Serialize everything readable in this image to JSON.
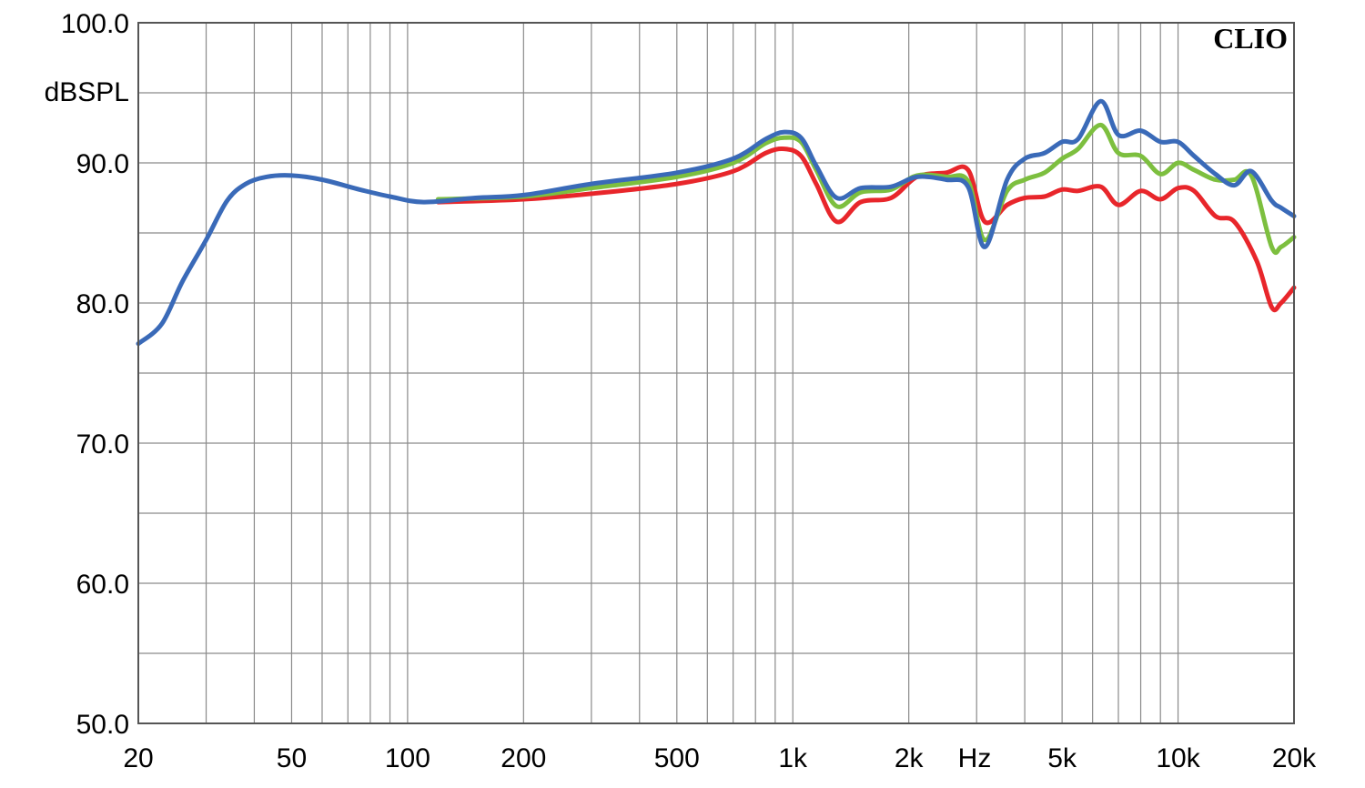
{
  "chart_data": {
    "type": "line",
    "title": "",
    "logo_text": "CLIO",
    "ylabel": "dBSPL",
    "xlabel": "Hz",
    "x_scale": "log",
    "xlim": [
      20,
      20000
    ],
    "ylim": [
      50,
      100
    ],
    "grid": true,
    "y_ticks": [
      "100.0",
      "90.0",
      "80.0",
      "70.0",
      "60.0",
      "50.0"
    ],
    "x_ticks": [
      {
        "label": "20",
        "value": 20
      },
      {
        "label": "50",
        "value": 50
      },
      {
        "label": "100",
        "value": 100
      },
      {
        "label": "200",
        "value": 200
      },
      {
        "label": "500",
        "value": 500
      },
      {
        "label": "1k",
        "value": 1000
      },
      {
        "label": "2k",
        "value": 2000
      },
      {
        "label": "5k",
        "value": 5000
      },
      {
        "label": "10k",
        "value": 10000
      },
      {
        "label": "20k",
        "value": 20000
      }
    ],
    "series": [
      {
        "color": "#e8262b",
        "points": [
          [
            120,
            87.2
          ],
          [
            200,
            87.4
          ],
          [
            300,
            87.8
          ],
          [
            500,
            88.5
          ],
          [
            700,
            89.4
          ],
          [
            850,
            90.7
          ],
          [
            950,
            91.0
          ],
          [
            1050,
            90.5
          ],
          [
            1150,
            88.5
          ],
          [
            1300,
            85.8
          ],
          [
            1500,
            87.2
          ],
          [
            1800,
            87.5
          ],
          [
            2100,
            89.0
          ],
          [
            2500,
            89.3
          ],
          [
            2850,
            89.5
          ],
          [
            3150,
            85.8
          ],
          [
            3600,
            87.0
          ],
          [
            4000,
            87.5
          ],
          [
            4500,
            87.6
          ],
          [
            5000,
            88.1
          ],
          [
            5500,
            88.0
          ],
          [
            6300,
            88.3
          ],
          [
            7000,
            87.0
          ],
          [
            8000,
            88.0
          ],
          [
            9000,
            87.4
          ],
          [
            10000,
            88.2
          ],
          [
            11000,
            88.0
          ],
          [
            12500,
            86.2
          ],
          [
            14000,
            85.8
          ],
          [
            16000,
            83.0
          ],
          [
            17500,
            79.7
          ],
          [
            18500,
            80.0
          ],
          [
            20000,
            81.1
          ]
        ]
      },
      {
        "color": "#7dbf3f",
        "points": [
          [
            120,
            87.4
          ],
          [
            200,
            87.6
          ],
          [
            300,
            88.2
          ],
          [
            500,
            89.0
          ],
          [
            700,
            90.0
          ],
          [
            850,
            91.4
          ],
          [
            950,
            91.8
          ],
          [
            1050,
            91.5
          ],
          [
            1150,
            89.5
          ],
          [
            1300,
            86.9
          ],
          [
            1500,
            87.9
          ],
          [
            1800,
            88.1
          ],
          [
            2100,
            89.1
          ],
          [
            2500,
            89.0
          ],
          [
            2850,
            88.7
          ],
          [
            3150,
            84.5
          ],
          [
            3600,
            88.0
          ],
          [
            4000,
            88.8
          ],
          [
            4500,
            89.3
          ],
          [
            5000,
            90.3
          ],
          [
            5500,
            91.0
          ],
          [
            6300,
            92.7
          ],
          [
            7000,
            90.7
          ],
          [
            8000,
            90.5
          ],
          [
            9000,
            89.2
          ],
          [
            10000,
            90.0
          ],
          [
            11000,
            89.5
          ],
          [
            12500,
            88.8
          ],
          [
            14000,
            88.8
          ],
          [
            15500,
            89.1
          ],
          [
            17500,
            84.0
          ],
          [
            18500,
            84.0
          ],
          [
            20000,
            84.7
          ]
        ]
      },
      {
        "color": "#3a6ab8",
        "points": [
          [
            20,
            77.1
          ],
          [
            23,
            78.5
          ],
          [
            26,
            81.5
          ],
          [
            30,
            84.5
          ],
          [
            34,
            87.3
          ],
          [
            38,
            88.5
          ],
          [
            43,
            89.0
          ],
          [
            50,
            89.1
          ],
          [
            60,
            88.8
          ],
          [
            75,
            88.1
          ],
          [
            90,
            87.6
          ],
          [
            110,
            87.2
          ],
          [
            150,
            87.5
          ],
          [
            200,
            87.7
          ],
          [
            300,
            88.5
          ],
          [
            500,
            89.3
          ],
          [
            700,
            90.3
          ],
          [
            850,
            91.7
          ],
          [
            950,
            92.2
          ],
          [
            1050,
            91.8
          ],
          [
            1150,
            89.8
          ],
          [
            1300,
            87.5
          ],
          [
            1500,
            88.2
          ],
          [
            1800,
            88.3
          ],
          [
            2100,
            89.0
          ],
          [
            2500,
            88.8
          ],
          [
            2850,
            88.3
          ],
          [
            3150,
            84.0
          ],
          [
            3600,
            88.8
          ],
          [
            4000,
            90.3
          ],
          [
            4500,
            90.7
          ],
          [
            5000,
            91.5
          ],
          [
            5500,
            91.7
          ],
          [
            6300,
            94.4
          ],
          [
            7000,
            92.0
          ],
          [
            8000,
            92.3
          ],
          [
            9000,
            91.5
          ],
          [
            10000,
            91.5
          ],
          [
            11000,
            90.5
          ],
          [
            12500,
            89.2
          ],
          [
            14000,
            88.4
          ],
          [
            15500,
            89.4
          ],
          [
            17500,
            87.3
          ],
          [
            18500,
            86.8
          ],
          [
            20000,
            86.2
          ]
        ]
      }
    ]
  }
}
